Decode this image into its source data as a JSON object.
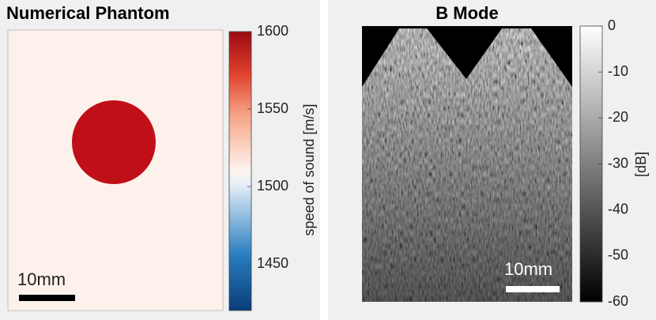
{
  "chart_data": [
    {
      "type": "image",
      "title": "Numerical Phantom",
      "scale_bar_label": "10mm",
      "colorbar": {
        "lim": [
          1420,
          1600
        ],
        "ticks": [
          1450,
          1500,
          1550,
          1600
        ],
        "label": "speed of sound [m/s]"
      }
    },
    {
      "type": "image",
      "title": "B Mode",
      "scale_bar_label": "10mm",
      "colorbar": {
        "lim": [
          -60,
          0
        ],
        "ticks": [
          -60,
          -50,
          -40,
          -30,
          -20,
          -10,
          0
        ],
        "label": "[dB]"
      }
    }
  ]
}
